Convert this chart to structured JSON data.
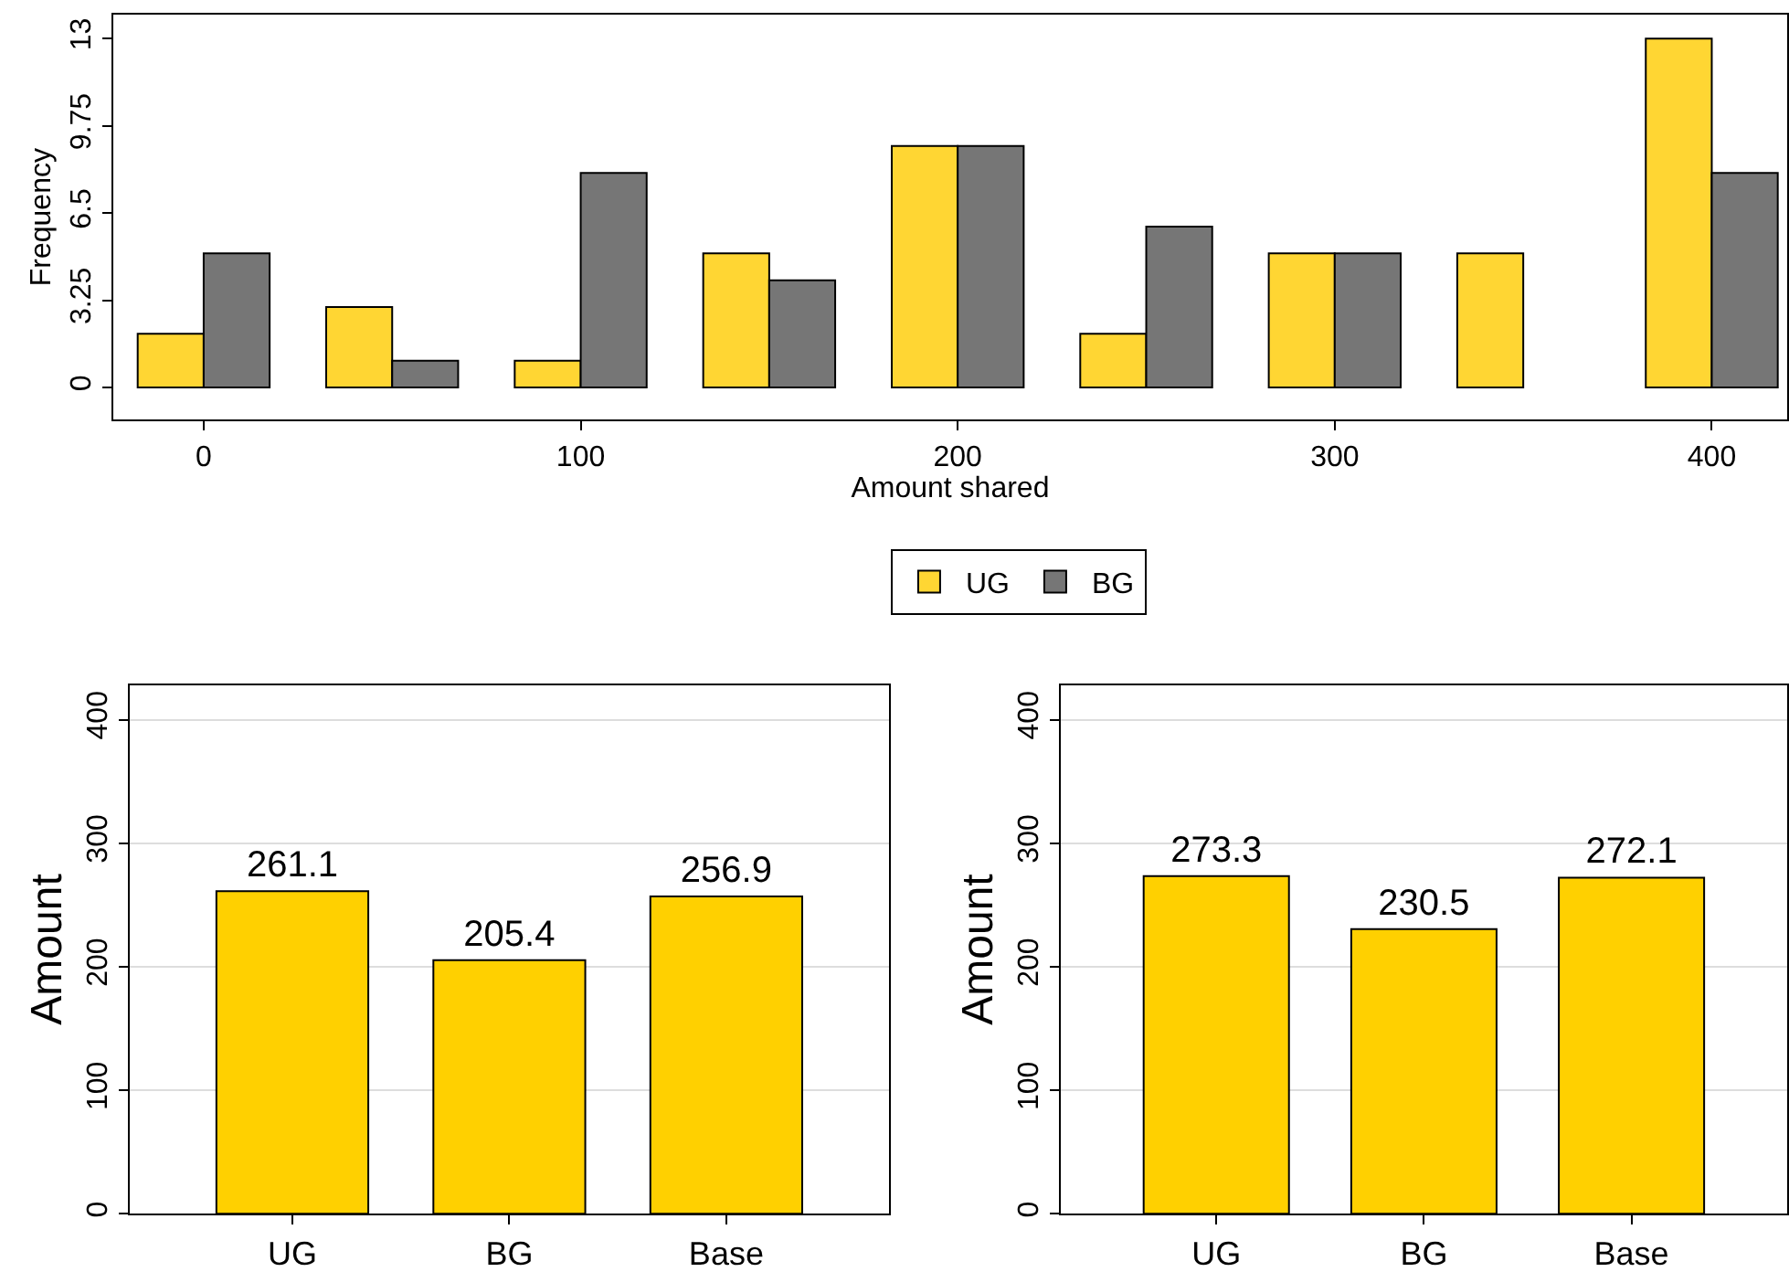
{
  "chart_data": [
    {
      "type": "bar",
      "xlabel": "Amount shared",
      "ylabel": "Frequency",
      "x": [
        0,
        50,
        100,
        150,
        200,
        250,
        300,
        350,
        400
      ],
      "series": [
        {
          "name": "UG",
          "color": "#ffd633",
          "values": [
            2,
            3,
            1,
            5,
            9,
            2,
            5,
            5,
            13
          ]
        },
        {
          "name": "BG",
          "color": "#767676",
          "values": [
            5,
            1,
            8,
            4,
            9,
            6,
            5,
            0,
            8
          ]
        }
      ],
      "xlim": [
        -24,
        420
      ],
      "xticks": [
        0,
        100,
        200,
        300,
        400
      ],
      "ylim": [
        -1.2,
        13.9
      ],
      "yticks": [
        0,
        3.25,
        6.5,
        9.75,
        13
      ],
      "grid": false,
      "legend": "bottom"
    },
    {
      "type": "bar",
      "ylabel": "Amount",
      "categories": [
        "UG",
        "BG",
        "Base"
      ],
      "values": [
        261.1,
        205.4,
        256.9
      ],
      "color": "#ffd000",
      "ylim": [
        0,
        428
      ],
      "yticks": [
        0,
        100,
        200,
        300,
        400
      ],
      "grid": "y",
      "data_labels": true
    },
    {
      "type": "bar",
      "ylabel": "Amount",
      "categories": [
        "UG",
        "BG",
        "Base"
      ],
      "values": [
        273.3,
        230.5,
        272.1
      ],
      "color": "#ffd000",
      "ylim": [
        0,
        428
      ],
      "yticks": [
        0,
        100,
        200,
        300,
        400
      ],
      "grid": "y",
      "data_labels": true
    }
  ]
}
